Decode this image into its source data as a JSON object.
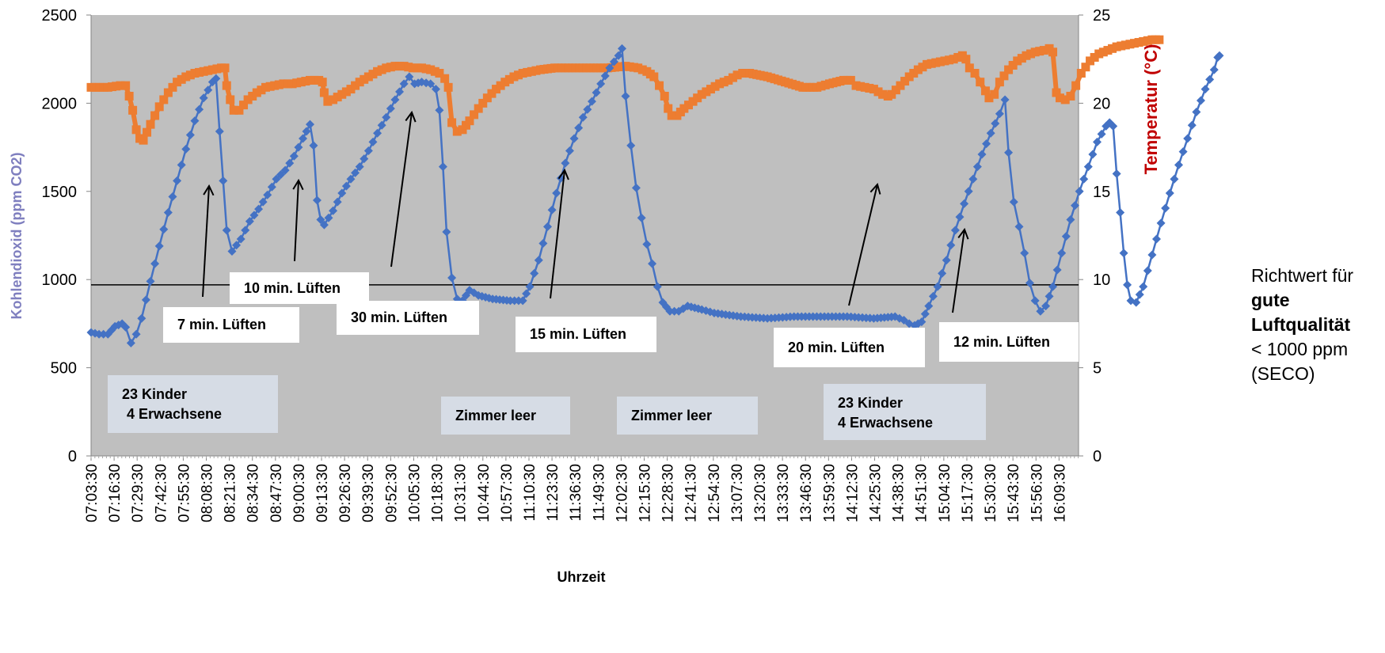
{
  "chart_data": {
    "type": "line",
    "xlabel": "Uhrzeit",
    "ylabel_left": "Kohlendioxid (ppm CO2)",
    "ylabel_right": "Temperatur (°C)",
    "ylim_left": [
      0,
      2500
    ],
    "ylim_right": [
      0,
      25
    ],
    "yticks_left": [
      "0",
      "500",
      "1000",
      "1500",
      "2000",
      "2500"
    ],
    "yticks_right": [
      "0",
      "5",
      "10",
      "15",
      "20",
      "25"
    ],
    "x_ticks": [
      "07:03:30",
      "07:16:30",
      "07:29:30",
      "07:42:30",
      "07:55:30",
      "08:08:30",
      "08:21:30",
      "08:34:30",
      "08:47:30",
      "09:00:30",
      "09:13:30",
      "09:26:30",
      "09:39:30",
      "09:52:30",
      "10:05:30",
      "10:18:30",
      "10:31:30",
      "10:44:30",
      "10:57:30",
      "11:10:30",
      "11:23:30",
      "11:36:30",
      "11:49:30",
      "12:02:30",
      "12:15:30",
      "12:28:30",
      "12:41:30",
      "12:54:30",
      "13:07:30",
      "13:20:30",
      "13:33:30",
      "13:46:30",
      "13:59:30",
      "14:12:30",
      "14:25:30",
      "14:38:30",
      "14:51:30",
      "15:04:30",
      "15:17:30",
      "15:30:30",
      "15:43:30",
      "15:56:30",
      "16:09:30"
    ],
    "x_range_minutes": [
      423.5,
      980.5
    ],
    "reference_line": {
      "value": 970,
      "axis": "left"
    },
    "plot_background": "#bfbfbf",
    "series": [
      {
        "name": "Kohlendioxid",
        "axis": "left",
        "color": "#4472c4",
        "marker": "diamond",
        "points": [
          [
            423.5,
            700
          ],
          [
            428,
            690
          ],
          [
            433,
            690
          ],
          [
            437,
            735
          ],
          [
            441,
            750
          ],
          [
            443,
            730
          ],
          [
            446,
            640
          ],
          [
            449,
            690
          ],
          [
            452,
            780
          ],
          [
            457,
            990
          ],
          [
            462,
            1190
          ],
          [
            467,
            1380
          ],
          [
            472,
            1560
          ],
          [
            477,
            1740
          ],
          [
            482,
            1900
          ],
          [
            487,
            2030
          ],
          [
            492,
            2120
          ],
          [
            494,
            2140
          ],
          [
            496,
            1840
          ],
          [
            498,
            1560
          ],
          [
            500,
            1280
          ],
          [
            503,
            1160
          ],
          [
            508,
            1230
          ],
          [
            513,
            1330
          ],
          [
            518,
            1400
          ],
          [
            523,
            1480
          ],
          [
            528,
            1570
          ],
          [
            533,
            1620
          ],
          [
            538,
            1700
          ],
          [
            543,
            1800
          ],
          [
            547,
            1880
          ],
          [
            549,
            1760
          ],
          [
            551,
            1450
          ],
          [
            553,
            1340
          ],
          [
            555,
            1310
          ],
          [
            560,
            1390
          ],
          [
            565,
            1490
          ],
          [
            570,
            1570
          ],
          [
            575,
            1640
          ],
          [
            580,
            1730
          ],
          [
            585,
            1830
          ],
          [
            590,
            1920
          ],
          [
            595,
            2020
          ],
          [
            600,
            2110
          ],
          [
            603,
            2150
          ],
          [
            606,
            2110
          ],
          [
            610,
            2120
          ],
          [
            615,
            2110
          ],
          [
            618,
            2080
          ],
          [
            620,
            1960
          ],
          [
            622,
            1640
          ],
          [
            624,
            1270
          ],
          [
            627,
            1010
          ],
          [
            630,
            890
          ],
          [
            633,
            880
          ],
          [
            637,
            940
          ],
          [
            642,
            910
          ],
          [
            650,
            890
          ],
          [
            660,
            880
          ],
          [
            667,
            880
          ],
          [
            671,
            960
          ],
          [
            676,
            1110
          ],
          [
            681,
            1300
          ],
          [
            686,
            1490
          ],
          [
            691,
            1660
          ],
          [
            696,
            1800
          ],
          [
            701,
            1920
          ],
          [
            706,
            2010
          ],
          [
            711,
            2110
          ],
          [
            716,
            2200
          ],
          [
            721,
            2270
          ],
          [
            723,
            2310
          ],
          [
            725,
            2040
          ],
          [
            728,
            1760
          ],
          [
            731,
            1520
          ],
          [
            734,
            1350
          ],
          [
            737,
            1200
          ],
          [
            740,
            1090
          ],
          [
            743,
            960
          ],
          [
            746,
            870
          ],
          [
            750,
            820
          ],
          [
            755,
            820
          ],
          [
            760,
            850
          ],
          [
            768,
            830
          ],
          [
            775,
            810
          ],
          [
            790,
            790
          ],
          [
            805,
            780
          ],
          [
            820,
            790
          ],
          [
            835,
            790
          ],
          [
            850,
            790
          ],
          [
            865,
            780
          ],
          [
            877,
            790
          ],
          [
            882,
            770
          ],
          [
            885,
            750
          ],
          [
            888,
            740
          ],
          [
            892,
            760
          ],
          [
            896,
            850
          ],
          [
            901,
            960
          ],
          [
            906,
            1110
          ],
          [
            911,
            1280
          ],
          [
            916,
            1430
          ],
          [
            921,
            1570
          ],
          [
            926,
            1710
          ],
          [
            931,
            1830
          ],
          [
            936,
            1940
          ],
          [
            939,
            2020
          ],
          [
            941,
            1720
          ],
          [
            944,
            1440
          ],
          [
            947,
            1300
          ],
          [
            950,
            1150
          ],
          [
            953,
            980
          ],
          [
            956,
            880
          ],
          [
            959,
            820
          ],
          [
            962,
            850
          ],
          [
            966,
            960
          ],
          [
            971,
            1150
          ],
          [
            976,
            1340
          ],
          [
            981,
            1500
          ],
          [
            986,
            1640
          ],
          [
            991,
            1780
          ],
          [
            996,
            1870
          ],
          [
            998,
            1890
          ],
          [
            1000,
            1870
          ],
          [
            1002,
            1600
          ],
          [
            1004,
            1380
          ],
          [
            1006,
            1150
          ],
          [
            1008,
            970
          ],
          [
            1010,
            880
          ],
          [
            1013,
            870
          ],
          [
            1017,
            960
          ],
          [
            1022,
            1140
          ],
          [
            1027,
            1320
          ],
          [
            1032,
            1490
          ],
          [
            1037,
            1650
          ],
          [
            1042,
            1800
          ],
          [
            1047,
            1950
          ],
          [
            1052,
            2080
          ],
          [
            1057,
            2190
          ],
          [
            1059,
            2260
          ],
          [
            1060,
            2270
          ]
        ]
      },
      {
        "name": "Temperatur",
        "axis": "right",
        "color": "#ed7d31",
        "marker": "square",
        "points": [
          [
            423.5,
            20.9
          ],
          [
            433,
            20.9
          ],
          [
            440,
            21.0
          ],
          [
            443,
            21.0
          ],
          [
            445,
            20.4
          ],
          [
            447,
            19.6
          ],
          [
            449,
            18.5
          ],
          [
            451,
            18.0
          ],
          [
            453,
            17.9
          ],
          [
            457,
            18.8
          ],
          [
            462,
            19.8
          ],
          [
            467,
            20.6
          ],
          [
            472,
            21.2
          ],
          [
            477,
            21.5
          ],
          [
            482,
            21.7
          ],
          [
            487,
            21.8
          ],
          [
            492,
            21.9
          ],
          [
            497,
            22.0
          ],
          [
            499,
            22.0
          ],
          [
            500,
            21.0
          ],
          [
            502,
            20.2
          ],
          [
            504,
            19.6
          ],
          [
            507,
            19.6
          ],
          [
            512,
            20.2
          ],
          [
            517,
            20.6
          ],
          [
            522,
            20.9
          ],
          [
            527,
            21.0
          ],
          [
            532,
            21.1
          ],
          [
            537,
            21.1
          ],
          [
            542,
            21.2
          ],
          [
            547,
            21.3
          ],
          [
            552,
            21.3
          ],
          [
            554,
            21.2
          ],
          [
            555,
            20.6
          ],
          [
            557,
            20.1
          ],
          [
            560,
            20.2
          ],
          [
            565,
            20.5
          ],
          [
            570,
            20.8
          ],
          [
            575,
            21.2
          ],
          [
            580,
            21.5
          ],
          [
            585,
            21.8
          ],
          [
            590,
            22.0
          ],
          [
            595,
            22.1
          ],
          [
            600,
            22.1
          ],
          [
            605,
            22.0
          ],
          [
            610,
            22.0
          ],
          [
            615,
            21.9
          ],
          [
            620,
            21.7
          ],
          [
            623,
            21.4
          ],
          [
            625,
            20.9
          ],
          [
            627,
            18.9
          ],
          [
            630,
            18.4
          ],
          [
            633,
            18.5
          ],
          [
            637,
            19.0
          ],
          [
            642,
            19.7
          ],
          [
            647,
            20.3
          ],
          [
            652,
            20.8
          ],
          [
            657,
            21.2
          ],
          [
            662,
            21.5
          ],
          [
            667,
            21.7
          ],
          [
            672,
            21.8
          ],
          [
            677,
            21.9
          ],
          [
            685,
            22.0
          ],
          [
            695,
            22.0
          ],
          [
            705,
            22.0
          ],
          [
            715,
            22.0
          ],
          [
            725,
            22.1
          ],
          [
            732,
            22.0
          ],
          [
            737,
            21.8
          ],
          [
            741,
            21.5
          ],
          [
            744,
            21.0
          ],
          [
            747,
            20.4
          ],
          [
            749,
            19.7
          ],
          [
            751,
            19.3
          ],
          [
            754,
            19.3
          ],
          [
            758,
            19.7
          ],
          [
            763,
            20.1
          ],
          [
            768,
            20.5
          ],
          [
            773,
            20.8
          ],
          [
            778,
            21.1
          ],
          [
            783,
            21.3
          ],
          [
            788,
            21.6
          ],
          [
            791,
            21.7
          ],
          [
            795,
            21.7
          ],
          [
            805,
            21.5
          ],
          [
            815,
            21.2
          ],
          [
            825,
            20.9
          ],
          [
            833,
            20.9
          ],
          [
            840,
            21.1
          ],
          [
            848,
            21.3
          ],
          [
            852,
            21.3
          ],
          [
            855,
            21.0
          ],
          [
            860,
            20.9
          ],
          [
            865,
            20.8
          ],
          [
            870,
            20.5
          ],
          [
            873,
            20.4
          ],
          [
            875,
            20.5
          ],
          [
            880,
            21.0
          ],
          [
            885,
            21.5
          ],
          [
            890,
            21.9
          ],
          [
            895,
            22.2
          ],
          [
            900,
            22.3
          ],
          [
            905,
            22.4
          ],
          [
            910,
            22.5
          ],
          [
            915,
            22.7
          ],
          [
            917,
            22.5
          ],
          [
            919,
            22.0
          ],
          [
            922,
            21.7
          ],
          [
            925,
            21.2
          ],
          [
            928,
            20.7
          ],
          [
            930,
            20.3
          ],
          [
            933,
            20.5
          ],
          [
            936,
            21.2
          ],
          [
            941,
            21.9
          ],
          [
            946,
            22.4
          ],
          [
            951,
            22.7
          ],
          [
            956,
            22.9
          ],
          [
            961,
            23.0
          ],
          [
            964,
            23.1
          ],
          [
            966,
            22.9
          ],
          [
            968,
            20.6
          ],
          [
            970,
            20.3
          ],
          [
            973,
            20.2
          ],
          [
            976,
            20.4
          ],
          [
            979,
            21.0
          ],
          [
            982,
            21.7
          ],
          [
            987,
            22.4
          ],
          [
            992,
            22.8
          ],
          [
            997,
            23.0
          ],
          [
            1002,
            23.2
          ],
          [
            1007,
            23.3
          ],
          [
            1012,
            23.4
          ],
          [
            1017,
            23.5
          ],
          [
            1022,
            23.6
          ],
          [
            1026,
            23.6
          ]
        ]
      }
    ],
    "annotations": [
      {
        "text": "7 min. Lüften",
        "arrow": [
          [
            256,
            375
          ],
          [
            264,
            235
          ]
        ]
      },
      {
        "text": "10 min. Lüften",
        "arrow": [
          [
            372,
            330
          ],
          [
            377,
            228
          ]
        ]
      },
      {
        "text": "30 min. Lüften",
        "arrow": [
          [
            494,
            337
          ],
          [
            520,
            142
          ]
        ]
      },
      {
        "text": "15 min. Lüften",
        "arrow": [
          [
            695,
            377
          ],
          [
            713,
            215
          ]
        ]
      },
      {
        "text": "20 min. Lüften",
        "arrow": [
          [
            1072,
            386
          ],
          [
            1108,
            233
          ]
        ]
      },
      {
        "text": "12 min. Lüften",
        "arrow": [
          [
            1203,
            395
          ],
          [
            1218,
            290
          ]
        ]
      }
    ],
    "groups": [
      {
        "line1": "23 Kinder",
        "line2": "4 Erwachsene"
      },
      {
        "line1": "Zimmer leer",
        "line2": ""
      },
      {
        "line1": "Zimmer leer",
        "line2": ""
      },
      {
        "line1": "23 Kinder",
        "line2": "4 Erwachsene"
      }
    ],
    "reference_note": {
      "line1": "Richtwert für",
      "line2": "gute",
      "line3": "Luftqualität",
      "line4": "< 1000 ppm",
      "line5": "(SECO)"
    }
  }
}
